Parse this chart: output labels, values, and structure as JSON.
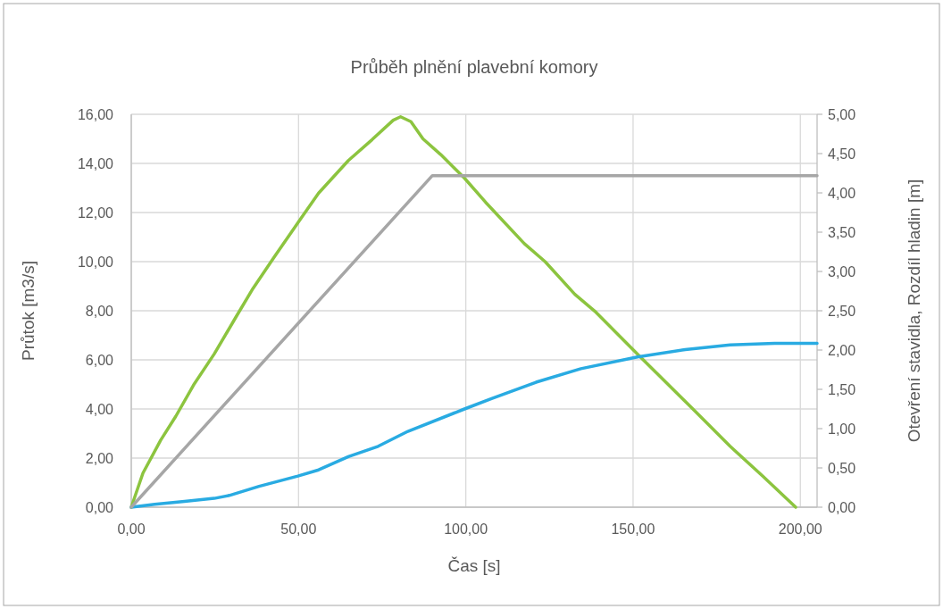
{
  "chart_data": {
    "type": "line",
    "title": "Průběh plnění plavební komory",
    "xlabel": "Čas [s]",
    "ylabel": "Průtok [m3/s]",
    "y2label": "Otevření stavidla, Rozdíl hladin [m]",
    "xlim": [
      0,
      205
    ],
    "xticks": [
      {
        "value": 0,
        "label": "0,00"
      },
      {
        "value": 50,
        "label": "50,00"
      },
      {
        "value": 100,
        "label": "100,00"
      },
      {
        "value": 150,
        "label": "150,00"
      },
      {
        "value": 200,
        "label": "200,00"
      }
    ],
    "ylim": [
      0,
      16
    ],
    "yticks": [
      {
        "value": 0,
        "label": "0,00"
      },
      {
        "value": 2,
        "label": "2,00"
      },
      {
        "value": 4,
        "label": "4,00"
      },
      {
        "value": 6,
        "label": "6,00"
      },
      {
        "value": 8,
        "label": "8,00"
      },
      {
        "value": 10,
        "label": "10,00"
      },
      {
        "value": 12,
        "label": "12,00"
      },
      {
        "value": 14,
        "label": "14,00"
      },
      {
        "value": 16,
        "label": "16,00"
      }
    ],
    "y2lim": [
      0,
      5
    ],
    "y2ticks": [
      {
        "value": 0,
        "label": "0,00"
      },
      {
        "value": 0.5,
        "label": "0,50"
      },
      {
        "value": 1,
        "label": "1,00"
      },
      {
        "value": 1.5,
        "label": "1,50"
      },
      {
        "value": 2,
        "label": "2,00"
      },
      {
        "value": 2.5,
        "label": "2,50"
      },
      {
        "value": 3,
        "label": "3,00"
      },
      {
        "value": 3.5,
        "label": "3,50"
      },
      {
        "value": 4,
        "label": "4,00"
      },
      {
        "value": 4.5,
        "label": "4,50"
      },
      {
        "value": 5,
        "label": "5,00"
      }
    ],
    "grid": true,
    "marker": "none",
    "line_style": "solid",
    "series": [
      {
        "color": "#8cc43f",
        "x": [
          0,
          3.5,
          8.8,
          13.3,
          18.6,
          24.8,
          31.1,
          36.4,
          42.7,
          49.8,
          56,
          64.9,
          72,
          78.3,
          80.5,
          83.6,
          87.2,
          92.5,
          99.6,
          105.9,
          117.5,
          123.7,
          132.6,
          138.9,
          151.3,
          167.4,
          179,
          188.7,
          198.6
        ],
        "values": [
          0,
          1.39,
          2.73,
          3.7,
          4.97,
          6.24,
          7.7,
          8.91,
          10.18,
          11.58,
          12.79,
          14.12,
          14.97,
          15.76,
          15.9,
          15.7,
          15,
          14.36,
          13.4,
          12.42,
          10.73,
          10,
          8.67,
          7.94,
          6.24,
          4.06,
          2.48,
          1.27,
          0
        ]
      },
      {
        "color": "#29abe2",
        "x": [
          0,
          7,
          15.9,
          24.8,
          29.3,
          38.2,
          49.8,
          56,
          64.9,
          73.8,
          82.7,
          99.6,
          107.7,
          121,
          134.4,
          151.3,
          165.6,
          179,
          192.3,
          205
        ],
        "values": [
          0,
          0.12,
          0.24,
          0.36,
          0.48,
          0.85,
          1.27,
          1.52,
          2.06,
          2.48,
          3.09,
          4,
          4.42,
          5.09,
          5.64,
          6.12,
          6.42,
          6.61,
          6.67,
          6.67
        ]
      },
      {
        "color": "#a6a6a6",
        "axis": "y2",
        "x": [
          0,
          90,
          205
        ],
        "values": [
          0,
          4.22,
          4.22
        ]
      }
    ]
  }
}
